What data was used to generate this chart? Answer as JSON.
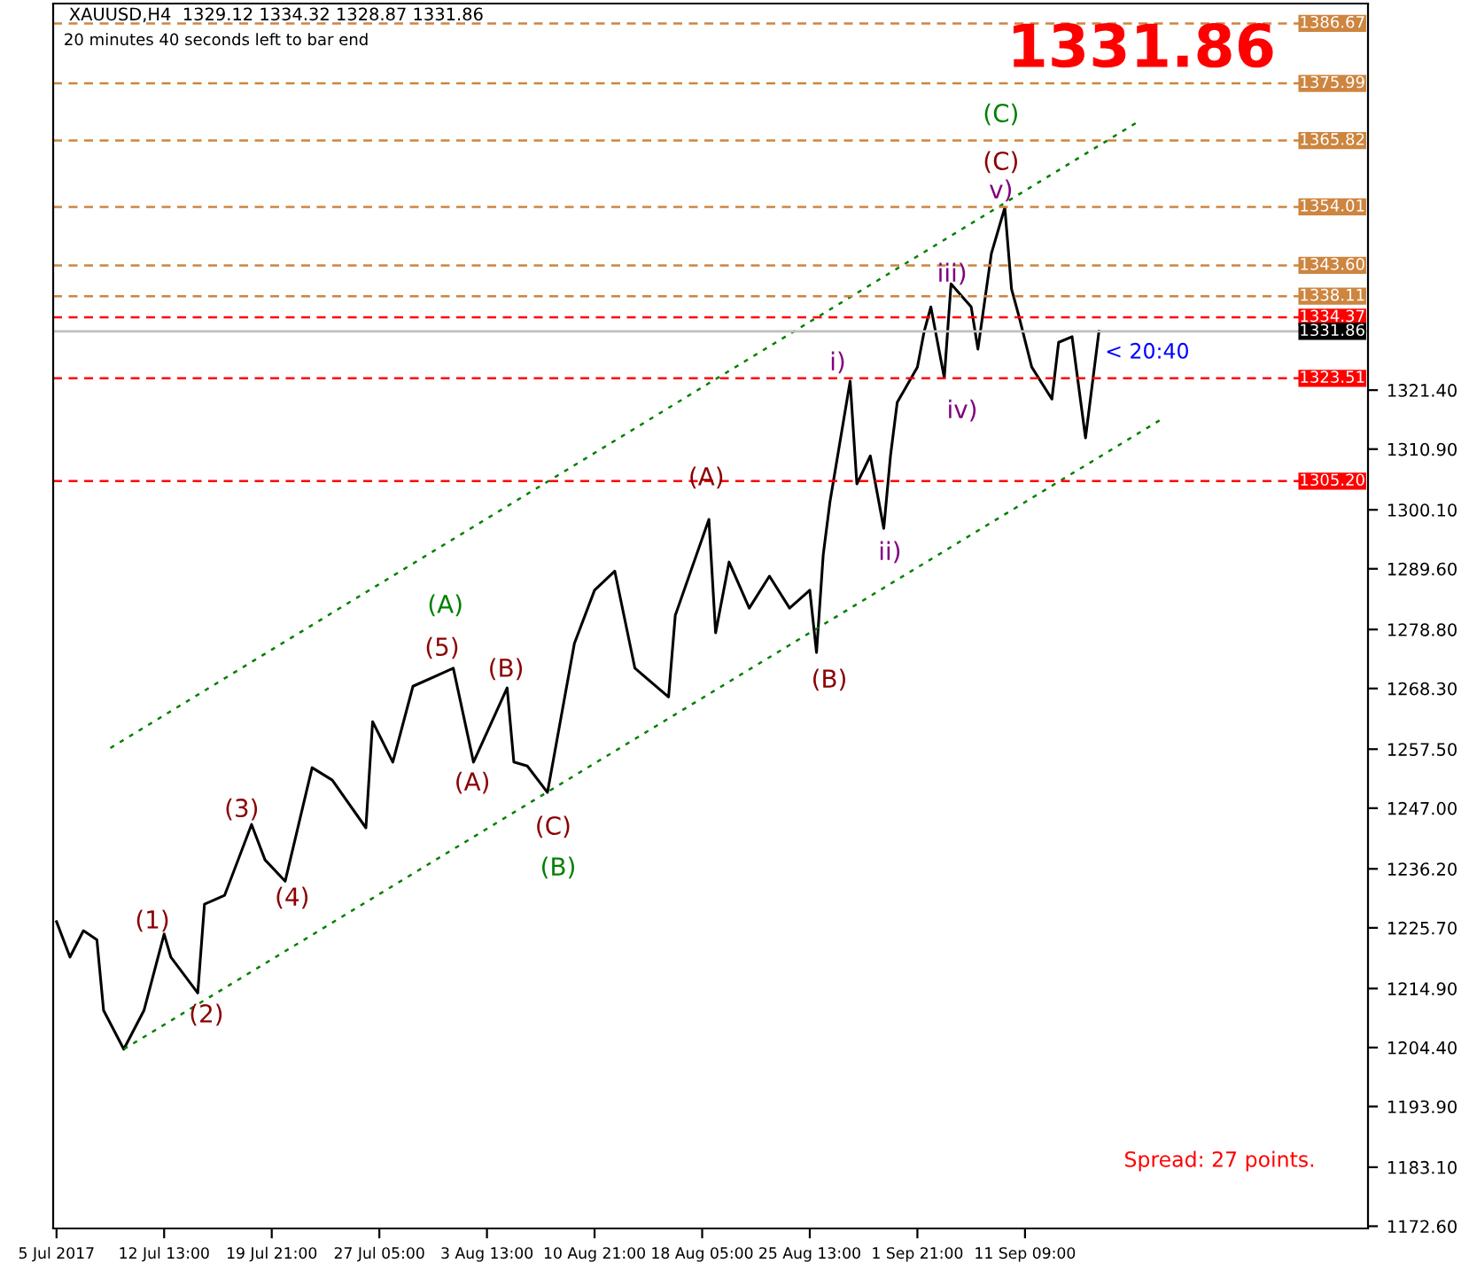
{
  "chart_data": {
    "type": "line",
    "title": "XAUUSD,H4  1329.12 1334.32 1328.87 1331.86",
    "subtitle": "20 minutes 40 seconds left to bar end",
    "categories": [
      "5 Jul 2017",
      null,
      null,
      null,
      null,
      null,
      null,
      null,
      null,
      null,
      null,
      null,
      null,
      null,
      null,
      null,
      "12 Jul 13:00",
      null,
      null,
      null,
      null,
      null,
      null,
      null,
      null,
      null,
      null,
      null,
      null,
      null,
      null,
      null,
      "19 Jul 21:00",
      null,
      null,
      null,
      null,
      null,
      null,
      null,
      null,
      null,
      null,
      null,
      null,
      null,
      null,
      null,
      "27 Jul 05:00",
      null,
      null,
      null,
      null,
      null,
      null,
      null,
      null,
      null,
      null,
      null,
      null,
      null,
      null,
      null,
      "3 Aug 13:00",
      null,
      null,
      null,
      null,
      null,
      null,
      null,
      null,
      null,
      null,
      null,
      null,
      null,
      null,
      null,
      "10 Aug 21:00",
      null,
      null,
      null,
      null,
      null,
      null,
      null,
      null,
      null,
      null,
      null,
      null,
      null,
      null,
      null,
      "18 Aug 05:00",
      null,
      null,
      null,
      null,
      null,
      null,
      null,
      null,
      null,
      null,
      null,
      null,
      null,
      null,
      null,
      "25 Aug 13:00",
      null,
      null,
      null,
      null,
      null,
      null,
      null,
      null,
      null,
      null,
      null,
      null,
      null,
      null,
      null,
      "1 Sep 21:00",
      null,
      null,
      null,
      null,
      null,
      null,
      null,
      null,
      null,
      null,
      null,
      null,
      null,
      null,
      null,
      "11 Sep 09:00",
      null,
      null,
      null,
      null,
      null,
      null,
      null,
      null,
      null,
      null,
      null,
      null,
      null,
      null,
      null,
      null,
      null,
      null,
      null,
      null,
      null,
      null,
      null,
      null,
      null,
      null,
      null,
      null,
      null,
      null,
      null,
      null,
      null,
      null,
      null,
      null,
      null,
      null,
      null,
      null,
      null,
      null,
      null,
      null,
      null,
      null,
      null,
      null,
      null,
      null,
      null
    ],
    "series": [
      {
        "color": "#000000",
        "values": [
          1226.8,
          null,
          1220.5,
          null,
          1225.2,
          null,
          1223.6,
          1211.0,
          null,
          null,
          1204.1,
          null,
          null,
          1211.0,
          null,
          null,
          1224.6,
          1220.5,
          null,
          null,
          null,
          1214.1,
          1229.9,
          null,
          null,
          1231.5,
          null,
          null,
          null,
          1244.1,
          null,
          1237.8,
          null,
          null,
          1234.0,
          null,
          1244.1,
          null,
          1254.2,
          null,
          null,
          1252.0,
          null,
          null,
          null,
          null,
          1243.5,
          1262.4,
          null,
          null,
          1255.2,
          null,
          null,
          1268.7,
          null,
          null,
          null,
          null,
          null,
          1271.9,
          null,
          null,
          1255.2,
          null,
          null,
          null,
          null,
          1268.4,
          1255.2,
          null,
          1254.5,
          null,
          null,
          1249.8,
          null,
          null,
          null,
          1276.3,
          null,
          null,
          1285.8,
          null,
          null,
          1289.2,
          null,
          null,
          1271.9,
          null,
          null,
          null,
          null,
          1266.8,
          1281.3,
          null,
          null,
          null,
          null,
          1298.4,
          1278.2,
          null,
          1290.8,
          null,
          null,
          1282.6,
          null,
          null,
          1288.3,
          null,
          null,
          1282.6,
          null,
          null,
          1285.8,
          1274.7,
          1292.1,
          1301.5,
          null,
          null,
          1323.0,
          1304.7,
          null,
          1309.7,
          null,
          1296.8,
          1309.7,
          1319.2,
          null,
          null,
          1325.5,
          1331.8,
          1336.2,
          null,
          1323.6,
          1340.3,
          null,
          null,
          1336.2,
          1328.7,
          null,
          1345.7,
          null,
          1353.9,
          1339.4,
          1335.0,
          null,
          1325.5,
          null,
          null,
          1319.8,
          1329.9,
          null,
          1330.9,
          null,
          1312.9,
          null,
          1331.9,
          null,
          null,
          null,
          null,
          null,
          null,
          null,
          null,
          null,
          null,
          null,
          null,
          null,
          null,
          null,
          null,
          null,
          null,
          null,
          null,
          null,
          null,
          null,
          null,
          null,
          null,
          null,
          null,
          null,
          null,
          null,
          null,
          null,
          null,
          null,
          null,
          null,
          null,
          null,
          null
        ]
      },
      {
        "color": "#008000",
        "line_style": "dotted",
        "values": [
          null,
          null,
          null,
          null,
          null,
          null,
          null,
          null,
          1257.7,
          null,
          null,
          null,
          null,
          null,
          null,
          null,
          null,
          null,
          null,
          null,
          null,
          null,
          null,
          null,
          null,
          null,
          null,
          null,
          null,
          null,
          null,
          null,
          null,
          null,
          null,
          null,
          null,
          null,
          null,
          null,
          null,
          null,
          null,
          null,
          null,
          null,
          null,
          null,
          null,
          null,
          null,
          null,
          null,
          null,
          null,
          null,
          null,
          null,
          null,
          null,
          null,
          null,
          null,
          null,
          null,
          null,
          null,
          null,
          null,
          null,
          null,
          null,
          null,
          null,
          null,
          null,
          null,
          null,
          null,
          null,
          null,
          null,
          null,
          null,
          null,
          null,
          null,
          null,
          null,
          null,
          null,
          null,
          null,
          null,
          null,
          null,
          null,
          null,
          null,
          null,
          null,
          null,
          null,
          null,
          null,
          null,
          null,
          null,
          null,
          null,
          null,
          null,
          null,
          null,
          null,
          null,
          null,
          null,
          null,
          null,
          null,
          null,
          null,
          null,
          null,
          null,
          null,
          null,
          null,
          null,
          null,
          null,
          null,
          null,
          null,
          null,
          null,
          null,
          null,
          null,
          null,
          null,
          null,
          null,
          null,
          null,
          null,
          null,
          null,
          null,
          null,
          null,
          null,
          null,
          null,
          null,
          null,
          null,
          null,
          null,
          null,
          1369.3,
          null,
          null,
          null,
          null,
          null,
          null,
          null,
          null,
          null,
          null,
          null,
          null,
          null,
          null,
          null,
          null,
          null,
          null,
          null,
          null,
          null,
          null,
          null,
          null,
          null,
          null,
          null,
          null,
          null,
          null,
          null,
          null,
          null,
          null
        ]
      },
      {
        "color": "#008000",
        "line_style": "dotted",
        "values": [
          null,
          null,
          null,
          null,
          null,
          null,
          null,
          null,
          null,
          null,
          1204.1,
          null,
          null,
          null,
          null,
          null,
          null,
          null,
          null,
          null,
          null,
          null,
          null,
          null,
          null,
          null,
          null,
          null,
          null,
          null,
          null,
          null,
          null,
          null,
          null,
          null,
          null,
          null,
          null,
          null,
          null,
          null,
          null,
          null,
          null,
          null,
          null,
          null,
          null,
          null,
          null,
          null,
          null,
          null,
          null,
          null,
          null,
          null,
          null,
          null,
          null,
          null,
          null,
          null,
          null,
          null,
          null,
          null,
          null,
          null,
          null,
          null,
          null,
          null,
          null,
          null,
          null,
          null,
          null,
          null,
          null,
          null,
          null,
          null,
          null,
          null,
          null,
          null,
          null,
          null,
          null,
          null,
          null,
          null,
          null,
          null,
          null,
          null,
          null,
          null,
          null,
          null,
          null,
          null,
          null,
          null,
          null,
          null,
          null,
          null,
          null,
          null,
          null,
          null,
          null,
          null,
          null,
          null,
          null,
          null,
          null,
          null,
          null,
          null,
          null,
          null,
          null,
          null,
          null,
          null,
          null,
          null,
          null,
          null,
          null,
          null,
          null,
          null,
          null,
          null,
          null,
          null,
          null,
          null,
          null,
          null,
          null,
          null,
          null,
          null,
          null,
          null,
          null,
          null,
          null,
          null,
          null,
          null,
          null,
          null,
          null,
          null,
          null,
          null,
          1316.0,
          null,
          null,
          null,
          null,
          null,
          null,
          null,
          null,
          null,
          null,
          null,
          null,
          null,
          null,
          null,
          null,
          null,
          null,
          null,
          null,
          null,
          null,
          null,
          null,
          null,
          null,
          null,
          null,
          null,
          null,
          null
        ]
      }
    ],
    "ylim": [
      1172.2,
      1390.2
    ],
    "yticks": [
      {
        "value": 1172.6,
        "label": "1172.60"
      },
      {
        "value": 1183.1,
        "label": "1183.10"
      },
      {
        "value": 1193.9,
        "label": "1193.90"
      },
      {
        "value": 1204.4,
        "label": "1204.40"
      },
      {
        "value": 1214.9,
        "label": "1214.90"
      },
      {
        "value": 1225.7,
        "label": "1225.70"
      },
      {
        "value": 1236.2,
        "label": "1236.20"
      },
      {
        "value": 1247.0,
        "label": "1247.00"
      },
      {
        "value": 1257.5,
        "label": "1257.50"
      },
      {
        "value": 1268.3,
        "label": "1268.30"
      },
      {
        "value": 1278.8,
        "label": "1278.80"
      },
      {
        "value": 1289.6,
        "label": "1289.60"
      },
      {
        "value": 1300.1,
        "label": "1300.10"
      },
      {
        "value": 1310.9,
        "label": "1310.90"
      },
      {
        "value": 1321.4,
        "label": "1321.40"
      }
    ],
    "grid": false,
    "legend": false,
    "ref_lines": [
      {
        "axis": "y",
        "value": 1386.67,
        "label": "1386.67",
        "color": "#cd853f",
        "line_style": "dashed"
      },
      {
        "axis": "y",
        "value": 1375.99,
        "label": "1375.99",
        "color": "#cd853f",
        "line_style": "dashed"
      },
      {
        "axis": "y",
        "value": 1365.82,
        "label": "1365.82",
        "color": "#cd853f",
        "line_style": "dashed"
      },
      {
        "axis": "y",
        "value": 1354.01,
        "label": "1354.01",
        "color": "#cd853f",
        "line_style": "dashed"
      },
      {
        "axis": "y",
        "value": 1343.6,
        "label": "1343.60",
        "color": "#cd853f",
        "line_style": "dashed"
      },
      {
        "axis": "y",
        "value": 1338.11,
        "label": "1338.11",
        "color": "#cd853f",
        "line_style": "dashed"
      },
      {
        "axis": "y",
        "value": 1334.37,
        "label": "1334.37",
        "color": "#ff0000",
        "line_style": "dashed"
      },
      {
        "axis": "y",
        "value": 1331.86,
        "label": "1331.86",
        "color": "#c0c0c0",
        "line_style": "solid"
      },
      {
        "axis": "y",
        "value": 1323.51,
        "label": "1323.51",
        "color": "#ff0000",
        "line_style": "dashed"
      },
      {
        "axis": "y",
        "value": 1305.2,
        "label": "1305.20",
        "color": "#ff0000",
        "line_style": "dashed"
      }
    ],
    "annotations": [
      "(1)",
      "(2)",
      "(3)",
      "(4)",
      "(5)",
      "(A)",
      "(A)",
      "(B)",
      "(C)",
      "(B)",
      "(A)",
      "(B)",
      "i)",
      "ii)",
      "iii)",
      "iv)",
      "v)",
      "(C)",
      "(C)",
      "1331.86",
      "< 20:40",
      "Spread: 27 points."
    ]
  }
}
